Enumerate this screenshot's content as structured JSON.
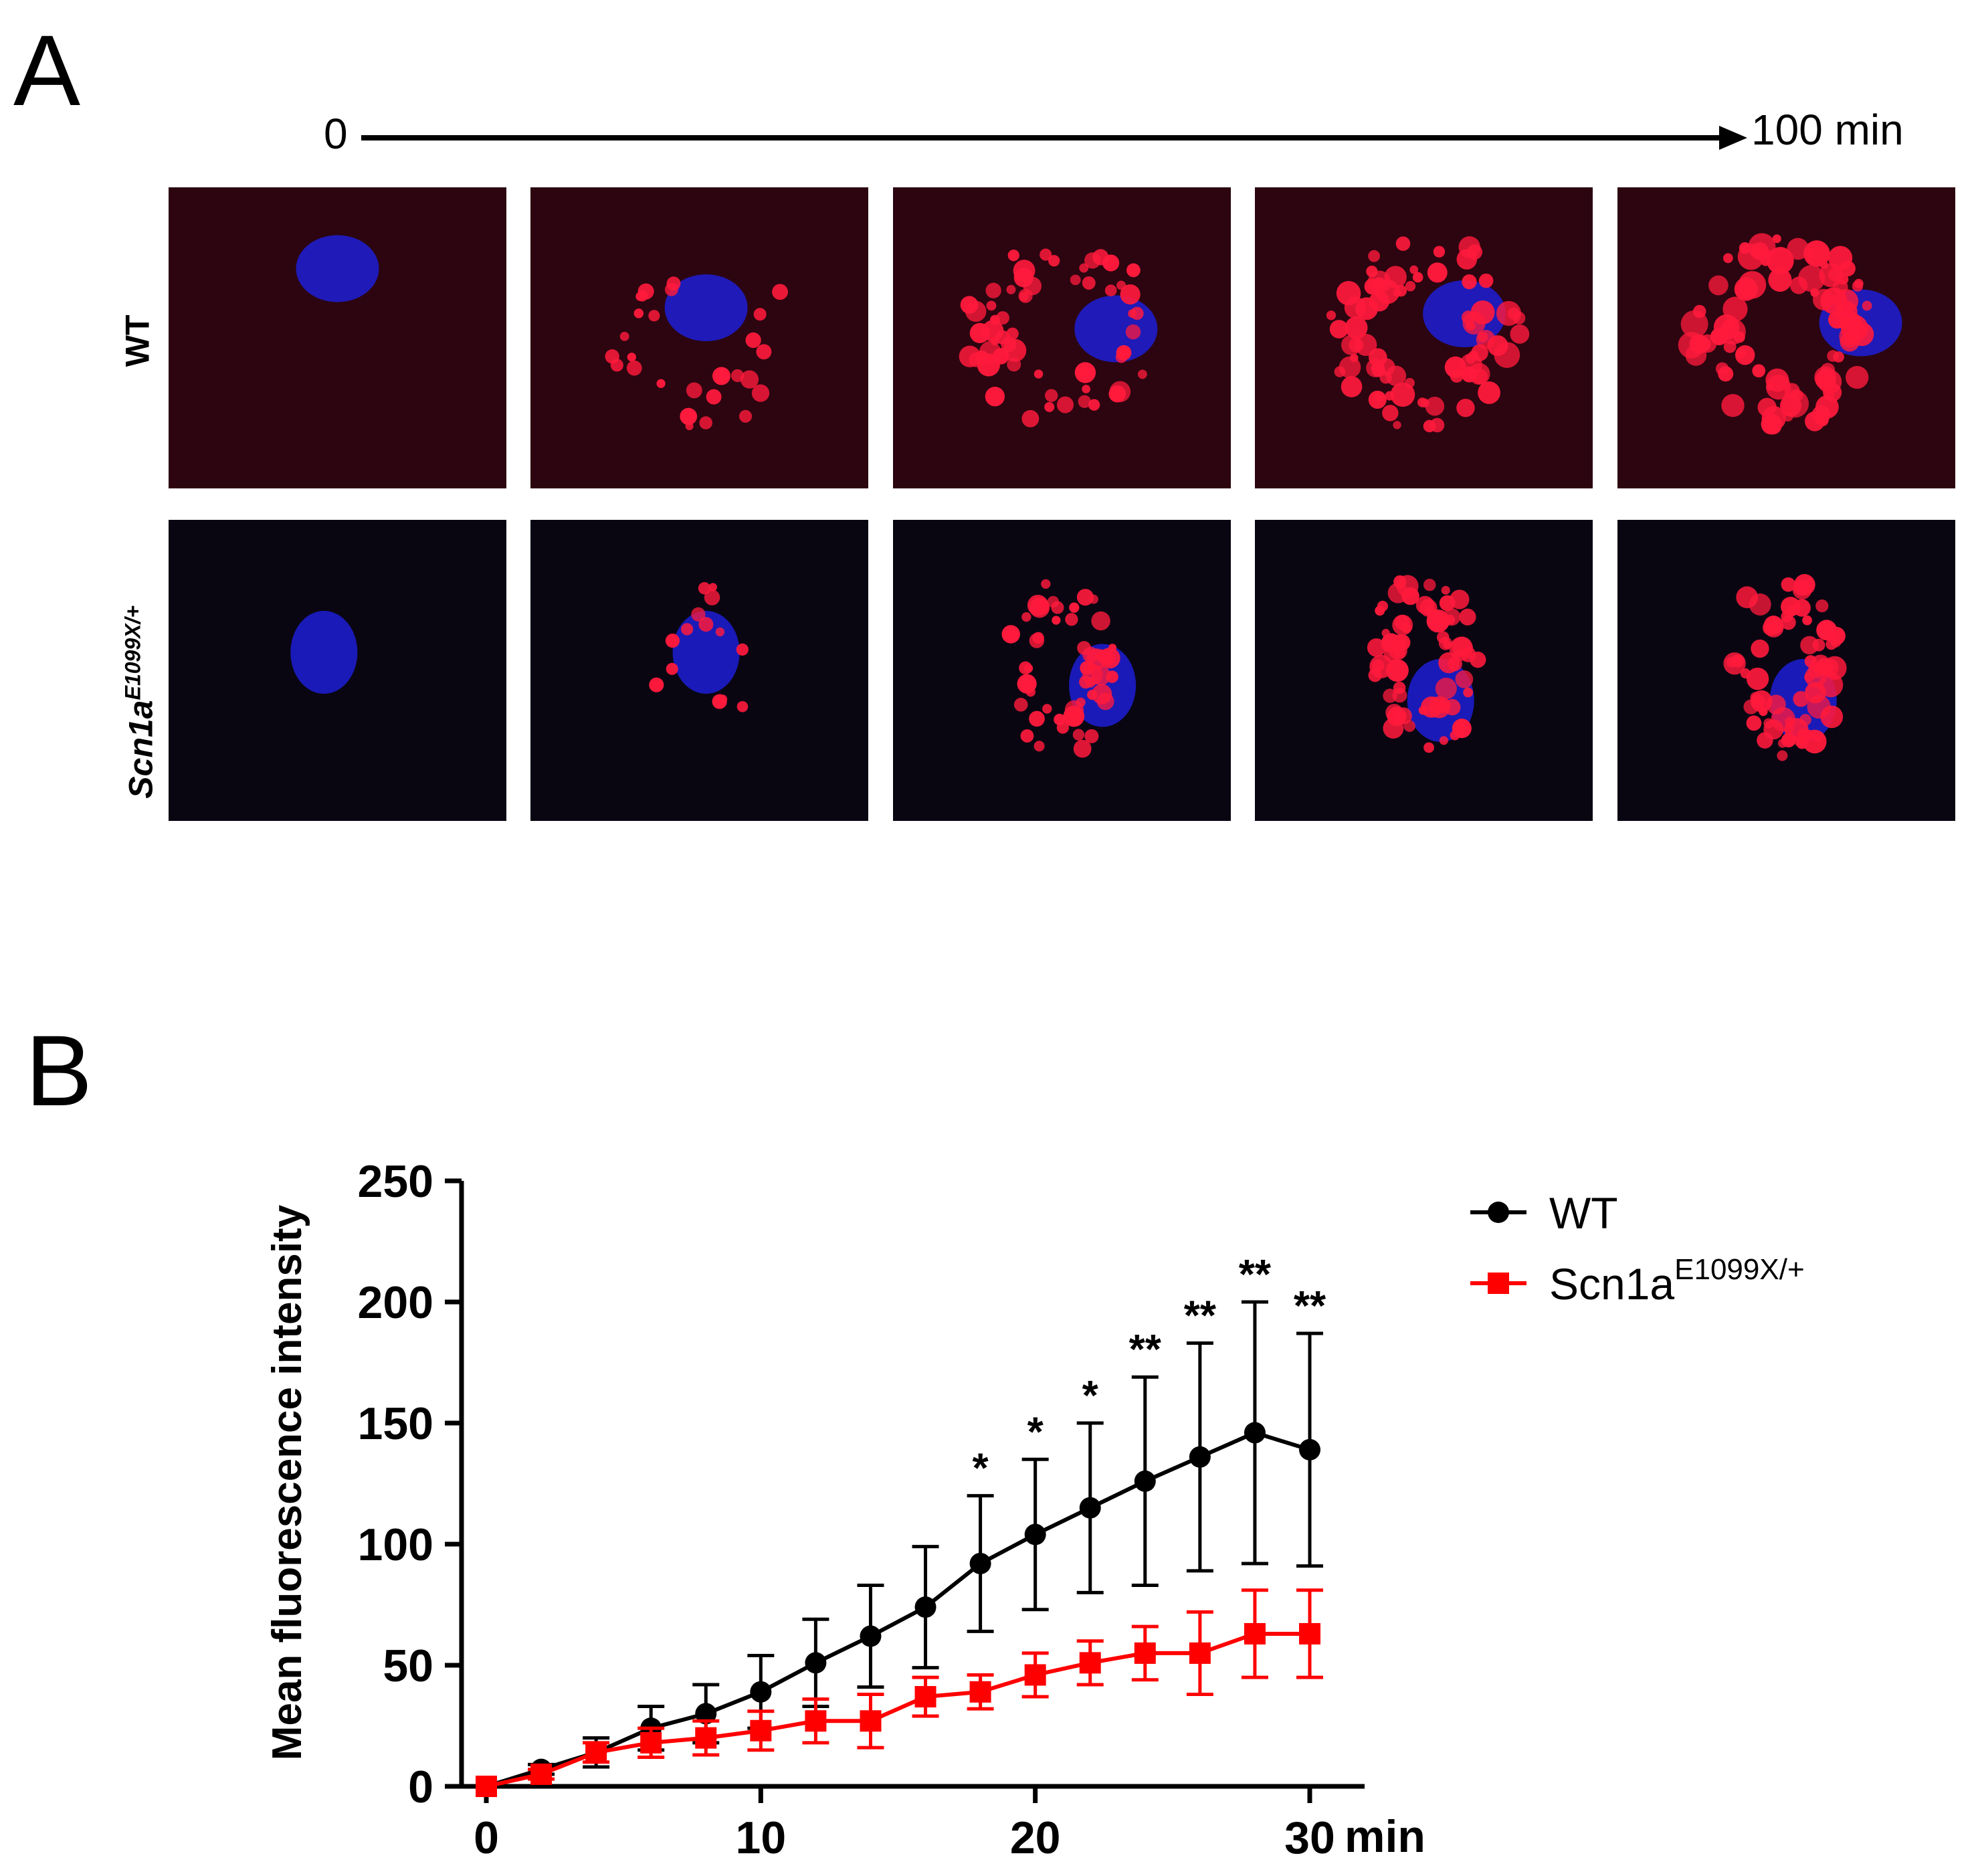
{
  "panel_a": {
    "letter": "A",
    "timeline": {
      "start_label": "0",
      "end_label": "100 min"
    },
    "rows": [
      {
        "label": "WT",
        "label_sup": "",
        "tint": "#2c0510",
        "frames": [
          {
            "red_level": 0.0
          },
          {
            "red_level": 0.3
          },
          {
            "red_level": 0.65
          },
          {
            "red_level": 0.85
          },
          {
            "red_level": 1.0
          }
        ]
      },
      {
        "label": "Scn1a",
        "label_sup": "E1099X/+",
        "tint": "#090612",
        "frames": [
          {
            "red_level": 0.0
          },
          {
            "red_level": 0.15
          },
          {
            "red_level": 0.55
          },
          {
            "red_level": 0.7
          },
          {
            "red_level": 0.75
          }
        ]
      }
    ],
    "colors": {
      "nucleus": "#1d1fd6",
      "puncta": "#ff1a3c"
    }
  },
  "panel_b": {
    "letter": "B"
  },
  "chart_data": {
    "type": "line",
    "title": "",
    "xlabel": "min",
    "ylabel": "Mean fluorescence intensity",
    "xlim": [
      0,
      30
    ],
    "ylim": [
      0,
      250
    ],
    "x_ticks": [
      0,
      10,
      20,
      30
    ],
    "y_ticks": [
      0,
      50,
      100,
      150,
      200,
      250
    ],
    "x": [
      0,
      2,
      4,
      6,
      8,
      10,
      12,
      14,
      16,
      18,
      20,
      22,
      24,
      26,
      28,
      30
    ],
    "series": [
      {
        "name": "WT",
        "color": "#000000",
        "marker": "circle",
        "values": [
          0,
          7,
          14,
          24,
          30,
          39,
          51,
          62,
          74,
          92,
          104,
          115,
          126,
          136,
          146,
          139
        ],
        "error": [
          0,
          2,
          6,
          9,
          12,
          15,
          18,
          21,
          25,
          28,
          31,
          35,
          43,
          47,
          54,
          48
        ]
      },
      {
        "name": "Scn1a",
        "name_sup": "E1099X/+",
        "color": "#ff0000",
        "marker": "square",
        "values": [
          0,
          5,
          14,
          18,
          20,
          23,
          27,
          27,
          37,
          39,
          46,
          51,
          55,
          55,
          63,
          63
        ],
        "error": [
          0,
          2,
          4,
          6,
          7,
          8,
          9,
          11,
          8,
          7,
          9,
          9,
          11,
          17,
          18,
          18
        ]
      }
    ],
    "significance": [
      {
        "x": 18,
        "label": "*"
      },
      {
        "x": 20,
        "label": "*"
      },
      {
        "x": 22,
        "label": "*"
      },
      {
        "x": 24,
        "label": "**"
      },
      {
        "x": 26,
        "label": "**"
      },
      {
        "x": 28,
        "label": "**"
      },
      {
        "x": 30,
        "label": "**"
      }
    ],
    "legend_position": "top-right"
  }
}
